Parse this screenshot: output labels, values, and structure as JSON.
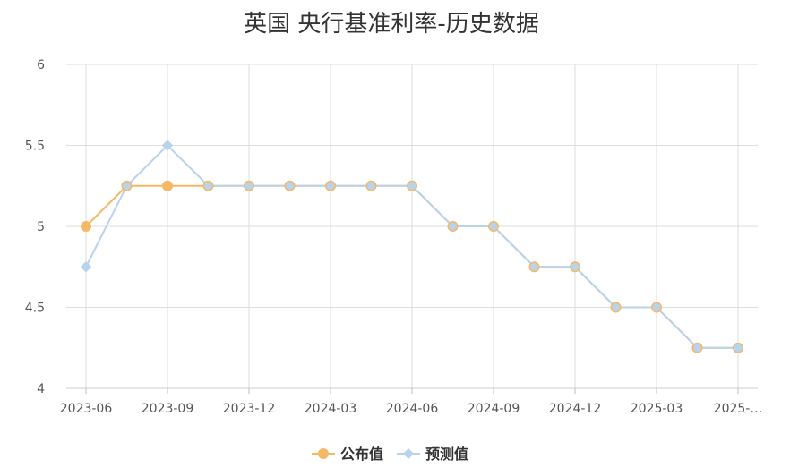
{
  "chart_data": {
    "type": "line",
    "title": "英国 央行基准利率-历史数据",
    "xlabel": "",
    "ylabel": "",
    "ylim": [
      4,
      6
    ],
    "y_ticks": [
      "4",
      "4.5",
      "5",
      "5.5",
      "6"
    ],
    "x_tick_labels": [
      "2023-06",
      "2023-09",
      "2023-12",
      "2024-03",
      "2024-06",
      "2024-09",
      "2024-12",
      "2025-03",
      "2025-…"
    ],
    "grid": true,
    "legend_position": "bottom-center",
    "series": [
      {
        "name": "公布值",
        "color": "#f5b865",
        "marker": "circle",
        "values": [
          5.0,
          5.25,
          5.25,
          5.25,
          5.25,
          5.25,
          5.25,
          5.25,
          5.25,
          5.0,
          5.0,
          4.75,
          4.75,
          4.5,
          4.5,
          4.25,
          4.25
        ]
      },
      {
        "name": "预测值",
        "color": "#b8d3ec",
        "marker": "diamond",
        "values": [
          4.75,
          5.25,
          5.5,
          5.25,
          5.25,
          5.25,
          5.25,
          5.25,
          5.25,
          5.0,
          5.0,
          4.75,
          4.75,
          4.5,
          4.5,
          4.25,
          4.25
        ]
      }
    ]
  }
}
